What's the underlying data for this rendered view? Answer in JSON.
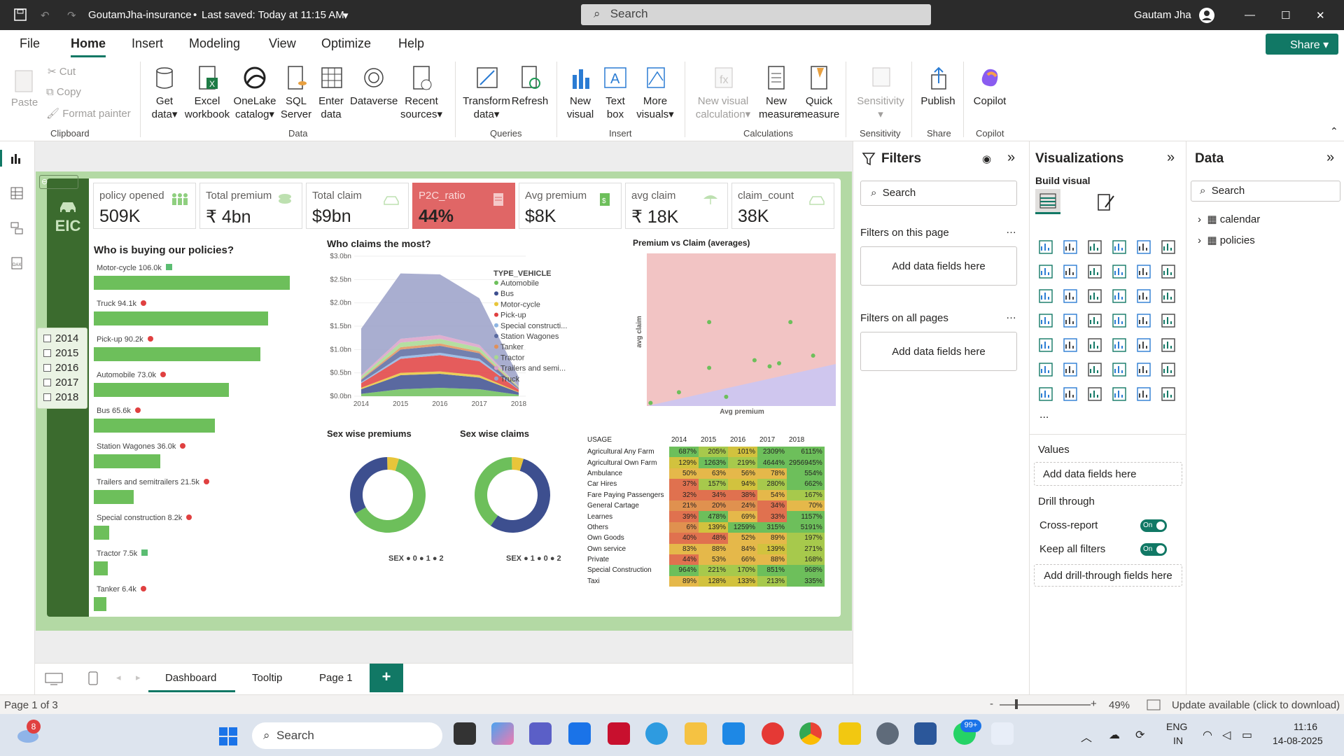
{
  "app": {
    "title": "GoutamJha-insurance",
    "saved": "Last saved: Today at 11:15 AM",
    "search": "Search",
    "user": "Gautam Jha"
  },
  "menu": {
    "file": "File",
    "home": "Home",
    "insert": "Insert",
    "modeling": "Modeling",
    "view": "View",
    "optimize": "Optimize",
    "help": "Help",
    "share": "Share"
  },
  "ribbon": {
    "paste": "Paste",
    "cut": "Cut",
    "copy": "Copy",
    "format_painter": "Format painter",
    "clipboard": "Clipboard",
    "get_data": [
      "Get",
      "data"
    ],
    "excel": [
      "Excel",
      "workbook"
    ],
    "onelake": [
      "OneLake",
      "catalog"
    ],
    "sql": [
      "SQL",
      "Server"
    ],
    "enter": [
      "Enter",
      "data"
    ],
    "dataverse": [
      "Dataverse"
    ],
    "recent": [
      "Recent",
      "sources"
    ],
    "data_grp": "Data",
    "transform": [
      "Transform",
      "data"
    ],
    "refresh": [
      "Refresh"
    ],
    "queries_grp": "Queries",
    "new_visual": [
      "New",
      "visual"
    ],
    "text_box": [
      "Text",
      "box"
    ],
    "more_visuals": [
      "More",
      "visuals"
    ],
    "insert_grp": "Insert",
    "new_visual_calc": [
      "New visual",
      "calculation"
    ],
    "new_measure": [
      "New",
      "measure"
    ],
    "quick_measure": [
      "Quick",
      "measure"
    ],
    "calc_grp": "Calculations",
    "sensitivity": [
      "Sensitivity"
    ],
    "sens_grp": "Sensitivity",
    "publish": [
      "Publish"
    ],
    "share_grp": "Share",
    "copilot": [
      "Copilot"
    ],
    "copilot_grp": "Copilot"
  },
  "report": {
    "logo": "EIC",
    "years": [
      "2014",
      "2015",
      "2016",
      "2017",
      "2018"
    ],
    "kpis": [
      {
        "label": "policy opened",
        "value": "509K"
      },
      {
        "label": "Total premium",
        "value": "₹ 4bn"
      },
      {
        "label": "Total claim",
        "value": "$9bn"
      },
      {
        "label": "P2C_ratio",
        "value": "44%"
      },
      {
        "label": "Avg premium",
        "value": "$8K"
      },
      {
        "label": "avg claim",
        "value": "₹ 18K"
      },
      {
        "label": "claim_count",
        "value": "38K"
      }
    ],
    "buying": {
      "title": "Who is buying our policies?",
      "items": [
        {
          "label": "Motor-cycle 106.0k",
          "value": 106.0
        },
        {
          "label": "Truck 94.1k",
          "value": 94.1
        },
        {
          "label": "Pick-up 90.2k",
          "value": 90.2
        },
        {
          "label": "Automobile 73.0k",
          "value": 73.0
        },
        {
          "label": "Bus 65.6k",
          "value": 65.6
        },
        {
          "label": "Station Wagones 36.0k",
          "value": 36.0
        },
        {
          "label": "Trailers and semitrailers 21.5k",
          "value": 21.5
        },
        {
          "label": "Special construction 8.2k",
          "value": 8.2
        },
        {
          "label": "Tractor 7.5k",
          "value": 7.5
        },
        {
          "label": "Tanker 6.4k",
          "value": 6.4
        }
      ]
    },
    "claims_title": "Who claims the most?",
    "scatter_title": "Premium vs Claim (averages)",
    "scatter_x": "Avg premium",
    "scatter_y": "avg claim",
    "sex_prem_title": "Sex wise premiums",
    "sex_claim_title": "Sex wise claims",
    "sex_prem_legend": "SEX ● 0 ● 1 ● 2",
    "sex_claim_legend": "SEX ● 1 ● 0 ● 2",
    "heat": {
      "headers": [
        "USAGE",
        "2014",
        "2015",
        "2016",
        "2017",
        "2018"
      ],
      "rows": [
        [
          "Agricultural Any Farm",
          "687%",
          "205%",
          "101%",
          "2309%",
          "6115%"
        ],
        [
          "Agricultural Own Farm",
          "129%",
          "1263%",
          "219%",
          "4644%",
          "2956945%"
        ],
        [
          "Ambulance",
          "50%",
          "63%",
          "56%",
          "78%",
          "554%"
        ],
        [
          "Car Hires",
          "37%",
          "157%",
          "94%",
          "280%",
          "662%"
        ],
        [
          "Fare Paying Passengers",
          "32%",
          "34%",
          "38%",
          "54%",
          "167%"
        ],
        [
          "General Cartage",
          "21%",
          "20%",
          "24%",
          "34%",
          "70%"
        ],
        [
          "Learnes",
          "39%",
          "478%",
          "69%",
          "33%",
          "1157%"
        ],
        [
          "Others",
          "6%",
          "139%",
          "1259%",
          "315%",
          "5191%"
        ],
        [
          "Own Goods",
          "40%",
          "48%",
          "52%",
          "89%",
          "197%"
        ],
        [
          "Own service",
          "83%",
          "88%",
          "84%",
          "139%",
          "271%"
        ],
        [
          "Private",
          "44%",
          "53%",
          "66%",
          "88%",
          "168%"
        ],
        [
          "Special Construction",
          "964%",
          "221%",
          "170%",
          "851%",
          "968%"
        ],
        [
          "Taxi",
          "89%",
          "128%",
          "133%",
          "213%",
          "335%"
        ]
      ]
    }
  },
  "chart_data": [
    {
      "type": "area",
      "title": "Who claims the most?",
      "x": [
        "2014",
        "2015",
        "2016",
        "2017",
        "2018"
      ],
      "ylabel": "",
      "ylim": [
        0,
        3.0
      ],
      "yticks": [
        "$0.0bn",
        "$0.5bn",
        "$1.0bn",
        "$1.5bn",
        "$2.0bn",
        "$2.5bn",
        "$3.0bn"
      ],
      "legend_title": "TYPE_VEHICLE",
      "series": [
        {
          "name": "Automobile",
          "color": "#6dbf5b",
          "values": [
            0.05,
            0.15,
            0.18,
            0.15,
            0.03
          ]
        },
        {
          "name": "Bus",
          "color": "#3d4f8f",
          "values": [
            0.1,
            0.3,
            0.3,
            0.25,
            0.05
          ]
        },
        {
          "name": "Motor-cycle",
          "color": "#e8c53a",
          "values": [
            0.03,
            0.05,
            0.05,
            0.05,
            0.01
          ]
        },
        {
          "name": "Pick-up",
          "color": "#e04040",
          "values": [
            0.1,
            0.3,
            0.35,
            0.3,
            0.05
          ]
        },
        {
          "name": "Special constructi...",
          "color": "#8db4e2",
          "values": [
            0.02,
            0.05,
            0.05,
            0.05,
            0.01
          ]
        },
        {
          "name": "Station Wagones",
          "color": "#5a6aa0",
          "values": [
            0.05,
            0.15,
            0.15,
            0.12,
            0.02
          ]
        },
        {
          "name": "Tanker",
          "color": "#e0905a",
          "values": [
            0.02,
            0.05,
            0.05,
            0.04,
            0.01
          ]
        },
        {
          "name": "Tractor",
          "color": "#a8d890",
          "values": [
            0.05,
            0.1,
            0.1,
            0.08,
            0.02
          ]
        },
        {
          "name": "Trailers and semi...",
          "color": "#d9a0c8",
          "values": [
            0.03,
            0.08,
            0.08,
            0.06,
            0.01
          ]
        },
        {
          "name": "Truck",
          "color": "#9aa0c8",
          "values": [
            1.0,
            1.4,
            1.3,
            1.0,
            0.2
          ]
        }
      ]
    },
    {
      "type": "scatter",
      "title": "Premium vs Claim (averages)",
      "xlabel": "Avg premium",
      "ylabel": "avg claim",
      "points": [
        [
          0.02,
          0.02
        ],
        [
          0.17,
          0.09
        ],
        [
          0.33,
          0.55
        ],
        [
          0.33,
          0.25
        ],
        [
          0.42,
          0.06
        ],
        [
          0.57,
          0.3
        ],
        [
          0.65,
          0.26
        ],
        [
          0.7,
          0.28
        ],
        [
          0.76,
          0.55
        ],
        [
          0.88,
          0.33
        ]
      ]
    },
    {
      "type": "pie",
      "title": "Sex wise premiums",
      "labels": [
        "0",
        "1",
        "2"
      ],
      "values": [
        62,
        33,
        5
      ],
      "colors": [
        "#6dbf5b",
        "#3d4f8f",
        "#e8c53a"
      ]
    },
    {
      "type": "pie",
      "title": "Sex wise claims",
      "labels": [
        "1",
        "0",
        "2"
      ],
      "values": [
        55,
        40,
        5
      ],
      "colors": [
        "#3d4f8f",
        "#6dbf5b",
        "#e8c53a"
      ]
    }
  ],
  "tabs": {
    "dash": "Dashboard",
    "tooltip": "Tooltip",
    "page1": "Page 1",
    "add": "+"
  },
  "status": {
    "page": "Page 1 of 3",
    "zoom": "49%",
    "update": "Update available (click to download)"
  },
  "filters": {
    "title": "Filters",
    "search": "Search",
    "on_page": "Filters on this page",
    "add1": "Add data fields here",
    "on_all": "Filters on all pages",
    "add2": "Add data fields here"
  },
  "viz": {
    "title": "Visualizations",
    "build": "Build visual",
    "values": "Values",
    "add_values": "Add data fields here",
    "drill": "Drill through",
    "cross": "Cross-report",
    "keep": "Keep all filters",
    "on": "On",
    "add_drill": "Add drill-through fields here",
    "more": "..."
  },
  "datapane": {
    "title": "Data",
    "search": "Search",
    "tables": [
      "calendar",
      "policies"
    ]
  },
  "taskbar": {
    "search": "Search",
    "badge": "8",
    "wa_badge": "99+",
    "lang1": "ENG",
    "lang2": "IN",
    "time": "11:16",
    "date": "14-08-2025"
  }
}
